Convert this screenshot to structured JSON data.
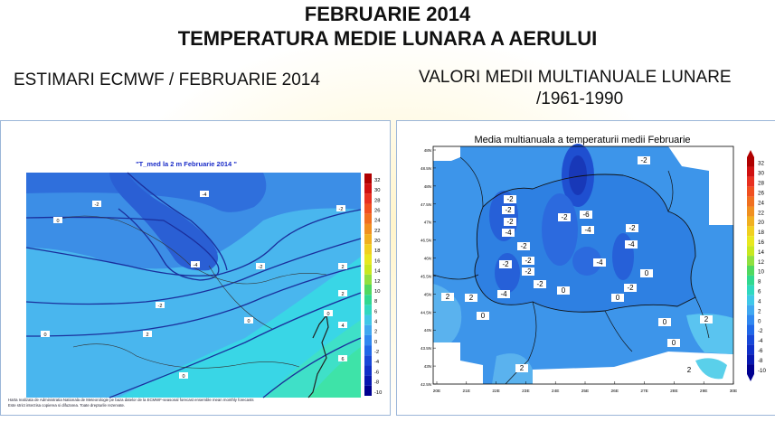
{
  "header": {
    "title_line1": "FEBRUARIE 2014",
    "title_line2": "TEMPERATURA MEDIE LUNARA A AERULUI",
    "subtitle_left": "ESTIMARI ECMWF / FEBRUARIE 2014",
    "subtitle_right_line1": "VALORI MEDII MULTIANUALE LUNARE",
    "subtitle_right_line2": "/1961-1990"
  },
  "left_map": {
    "title": "\"T_med la 2 m Februarie 2014 \"",
    "colorbar_ticks": [
      "32",
      "30",
      "28",
      "26",
      "24",
      "22",
      "20",
      "18",
      "16",
      "14",
      "12",
      "10",
      "8",
      "6",
      "4",
      "2",
      "0",
      "-2",
      "-4",
      "-6",
      "-8",
      "-10"
    ],
    "contour_labels": [
      "-4",
      "-4",
      "-2",
      "-2",
      "-2",
      "-2",
      "0",
      "0",
      "0",
      "0",
      "0",
      "2",
      "2",
      "4",
      "2",
      "6"
    ],
    "footer_line1": "Harta realizata de Administratia Nationala de Meteorologie pe baza datelor de la ECMWF-seasonal forecast ensemble mean monthly forecasts",
    "footer_line2": "Este strict interzisa copierea si difuzarea. Toate drepturile rezervate."
  },
  "right_map": {
    "title": "Media multianuala a temperaturii medii Februarie",
    "lat_ticks": [
      "48N",
      "48.5N",
      "48N",
      "47.5N",
      "47N",
      "46.5N",
      "46N",
      "45.5N",
      "45N",
      "44.5N",
      "44N",
      "43.5N",
      "43N",
      "42.5N"
    ],
    "lon_ticks": [
      "20E",
      "21E",
      "22E",
      "23E",
      "24E",
      "25E",
      "26E",
      "27E",
      "28E",
      "29E",
      "30E"
    ],
    "colorbar_ticks": [
      "32",
      "30",
      "28",
      "26",
      "24",
      "22",
      "20",
      "18",
      "16",
      "14",
      "12",
      "10",
      "8",
      "6",
      "4",
      "2",
      "0",
      "-2",
      "-4",
      "-6",
      "-8",
      "-10"
    ],
    "contour_labels": [
      "-2",
      "-2",
      "-2",
      "-2",
      "-2",
      "-4",
      "-2",
      "-6",
      "-4",
      "-2",
      "-4",
      "-2",
      "-2",
      "-4",
      "-4",
      "-2",
      "-2",
      "0",
      "0",
      "0",
      "2",
      "2",
      "0",
      "0",
      "2",
      "2",
      "2",
      "0",
      "-2"
    ]
  },
  "colors": {
    "left_cold": "#3a7de0",
    "left_mid": "#55b8f0",
    "left_warm": "#35e0e0",
    "right_base": "#2a8ae8",
    "right_cold": "#1a4fd0",
    "right_warm": "#5ac4f0"
  }
}
